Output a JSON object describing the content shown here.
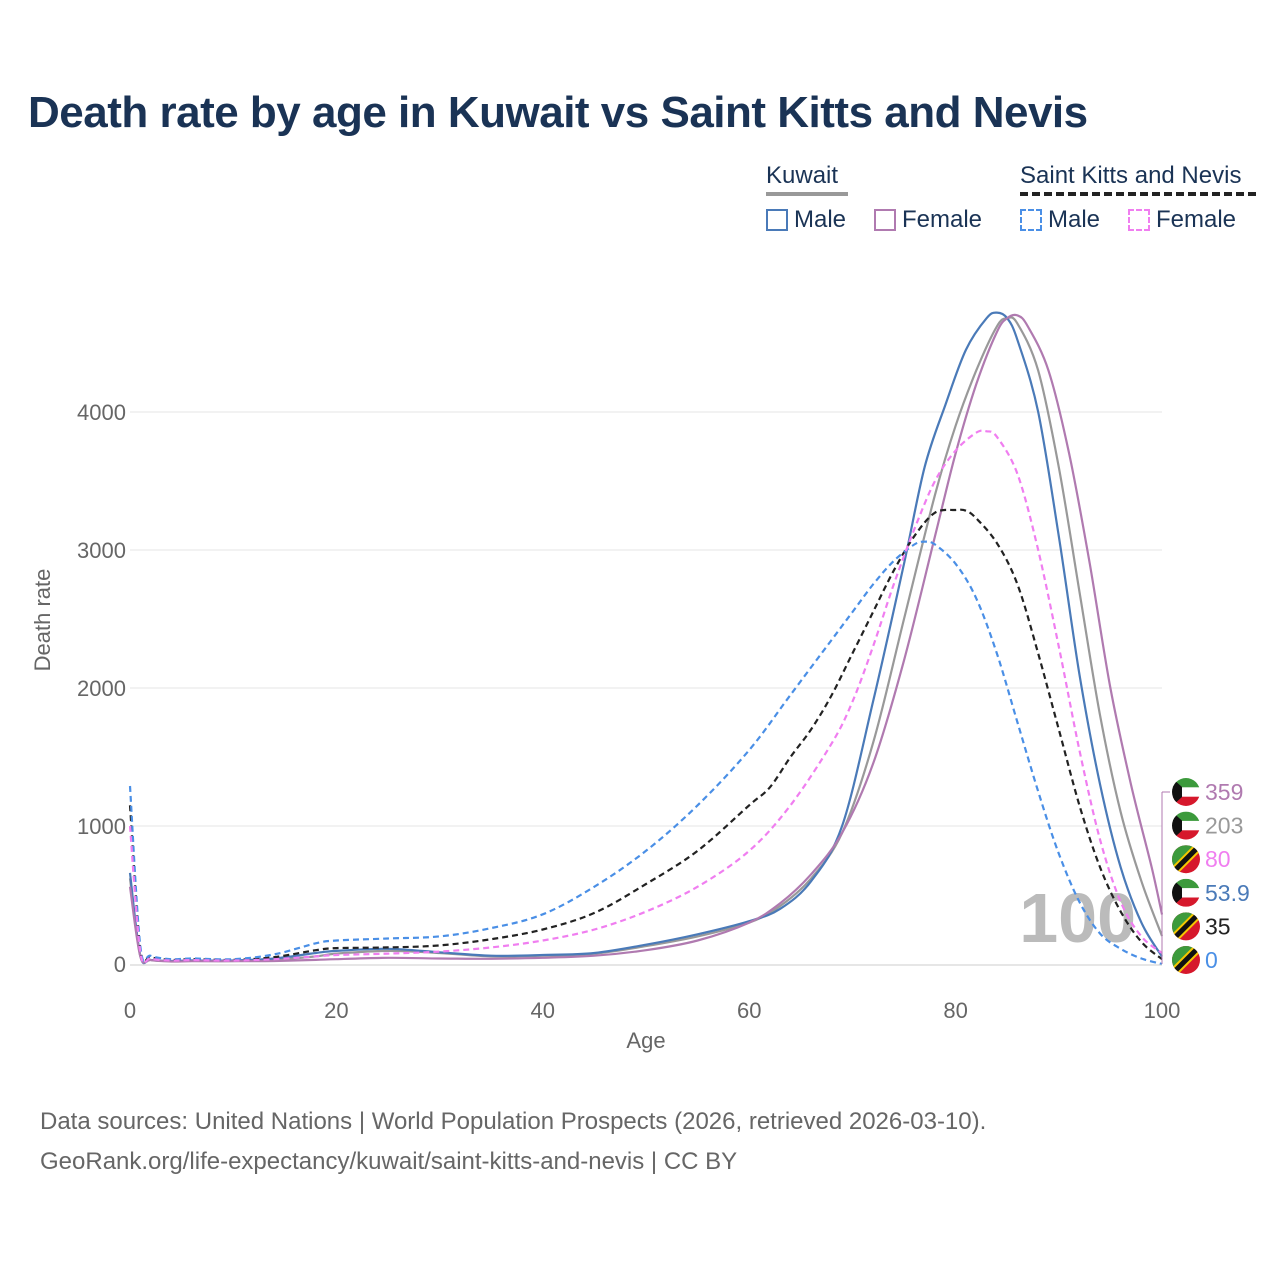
{
  "title": "Death rate by age in Kuwait vs Saint Kitts and Nevis",
  "legend": {
    "groups": [
      {
        "name": "Kuwait",
        "style": "solid",
        "color": "#999999",
        "items": [
          {
            "label": "Male",
            "color": "#4a7ab8"
          },
          {
            "label": "Female",
            "color": "#b07ab0"
          }
        ]
      },
      {
        "name": "Saint Kitts and Nevis",
        "style": "dashed",
        "color": "#222222",
        "items": [
          {
            "label": "Male",
            "color": "#4a8fe6"
          },
          {
            "label": "Female",
            "color": "#f07ef0"
          }
        ]
      }
    ]
  },
  "source_line1": "Data sources: United Nations | World Population Prospects (2026, retrieved 2026-03-10).",
  "source_line2": "GeoRank.org/life-expectancy/kuwait/saint-kitts-and-nevis | CC BY",
  "chart_data": {
    "type": "line",
    "xlabel": "Age",
    "ylabel": "Death rate",
    "xlim": [
      0,
      100
    ],
    "ylim": [
      0,
      4800
    ],
    "xticks": [
      0,
      20,
      40,
      60,
      80,
      100
    ],
    "yticks": [
      0,
      1000,
      2000,
      3000,
      4000
    ],
    "grid": true,
    "age_watermark": "100",
    "series": [
      {
        "name": "Kuwait Total",
        "color": "#999999",
        "dash": false,
        "end_label": "203",
        "flag": "kuwait",
        "points": [
          [
            0,
            620
          ],
          [
            1,
            60
          ],
          [
            2,
            30
          ],
          [
            4,
            20
          ],
          [
            6,
            25
          ],
          [
            10,
            22
          ],
          [
            14,
            30
          ],
          [
            18,
            55
          ],
          [
            20,
            75
          ],
          [
            25,
            95
          ],
          [
            30,
            80
          ],
          [
            35,
            55
          ],
          [
            40,
            60
          ],
          [
            45,
            75
          ],
          [
            50,
            130
          ],
          [
            55,
            200
          ],
          [
            60,
            300
          ],
          [
            63,
            420
          ],
          [
            66,
            620
          ],
          [
            69,
            950
          ],
          [
            72,
            1600
          ],
          [
            75,
            2500
          ],
          [
            78,
            3400
          ],
          [
            80,
            3900
          ],
          [
            82,
            4300
          ],
          [
            84,
            4620
          ],
          [
            85,
            4680
          ],
          [
            86,
            4640
          ],
          [
            88,
            4300
          ],
          [
            90,
            3600
          ],
          [
            92,
            2700
          ],
          [
            94,
            1800
          ],
          [
            96,
            1100
          ],
          [
            98,
            600
          ],
          [
            100,
            203
          ]
        ]
      },
      {
        "name": "Kuwait Male",
        "color": "#4a7ab8",
        "dash": false,
        "end_label": "53.9",
        "flag": "kuwait",
        "points": [
          [
            0,
            660
          ],
          [
            1,
            60
          ],
          [
            2,
            30
          ],
          [
            4,
            22
          ],
          [
            6,
            25
          ],
          [
            10,
            25
          ],
          [
            14,
            40
          ],
          [
            18,
            80
          ],
          [
            20,
            95
          ],
          [
            25,
            110
          ],
          [
            30,
            85
          ],
          [
            35,
            60
          ],
          [
            40,
            65
          ],
          [
            45,
            80
          ],
          [
            50,
            140
          ],
          [
            55,
            215
          ],
          [
            60,
            310
          ],
          [
            63,
            400
          ],
          [
            66,
            600
          ],
          [
            69,
            1000
          ],
          [
            72,
            1900
          ],
          [
            75,
            2900
          ],
          [
            77,
            3600
          ],
          [
            79,
            4050
          ],
          [
            81,
            4450
          ],
          [
            83,
            4680
          ],
          [
            84,
            4720
          ],
          [
            85,
            4680
          ],
          [
            86,
            4520
          ],
          [
            88,
            4000
          ],
          [
            90,
            3100
          ],
          [
            92,
            2100
          ],
          [
            94,
            1300
          ],
          [
            96,
            700
          ],
          [
            98,
            300
          ],
          [
            100,
            53.9
          ]
        ]
      },
      {
        "name": "Kuwait Female",
        "color": "#b07ab0",
        "dash": false,
        "end_label": "359",
        "flag": "kuwait",
        "points": [
          [
            0,
            560
          ],
          [
            1,
            55
          ],
          [
            2,
            28
          ],
          [
            4,
            18
          ],
          [
            6,
            20
          ],
          [
            10,
            20
          ],
          [
            14,
            22
          ],
          [
            18,
            30
          ],
          [
            20,
            35
          ],
          [
            25,
            45
          ],
          [
            30,
            40
          ],
          [
            35,
            38
          ],
          [
            40,
            45
          ],
          [
            45,
            60
          ],
          [
            50,
            100
          ],
          [
            55,
            170
          ],
          [
            60,
            300
          ],
          [
            63,
            440
          ],
          [
            66,
            650
          ],
          [
            69,
            950
          ],
          [
            72,
            1450
          ],
          [
            75,
            2200
          ],
          [
            78,
            3100
          ],
          [
            80,
            3700
          ],
          [
            82,
            4200
          ],
          [
            84,
            4580
          ],
          [
            85,
            4680
          ],
          [
            86,
            4700
          ],
          [
            87,
            4620
          ],
          [
            89,
            4300
          ],
          [
            91,
            3700
          ],
          [
            93,
            2900
          ],
          [
            95,
            2000
          ],
          [
            97,
            1300
          ],
          [
            99,
            700
          ],
          [
            100,
            359
          ]
        ]
      },
      {
        "name": "Saint Kitts and Nevis Total",
        "color": "#222222",
        "dash": true,
        "end_label": "35",
        "flag": "skn",
        "points": [
          [
            0,
            1150
          ],
          [
            1,
            110
          ],
          [
            2,
            50
          ],
          [
            4,
            30
          ],
          [
            6,
            35
          ],
          [
            10,
            30
          ],
          [
            14,
            50
          ],
          [
            18,
            100
          ],
          [
            20,
            115
          ],
          [
            25,
            120
          ],
          [
            30,
            135
          ],
          [
            35,
            180
          ],
          [
            40,
            250
          ],
          [
            45,
            370
          ],
          [
            50,
            580
          ],
          [
            55,
            820
          ],
          [
            60,
            1150
          ],
          [
            62,
            1280
          ],
          [
            64,
            1500
          ],
          [
            66,
            1700
          ],
          [
            68,
            1950
          ],
          [
            70,
            2250
          ],
          [
            72,
            2550
          ],
          [
            74,
            2850
          ],
          [
            76,
            3100
          ],
          [
            78,
            3270
          ],
          [
            80,
            3290
          ],
          [
            81,
            3285
          ],
          [
            82,
            3230
          ],
          [
            84,
            3050
          ],
          [
            86,
            2750
          ],
          [
            88,
            2250
          ],
          [
            90,
            1700
          ],
          [
            92,
            1150
          ],
          [
            94,
            700
          ],
          [
            96,
            380
          ],
          [
            98,
            160
          ],
          [
            100,
            35
          ]
        ]
      },
      {
        "name": "Saint Kitts and Nevis Male",
        "color": "#4a8fe6",
        "dash": true,
        "end_label": "0",
        "flag": "skn",
        "points": [
          [
            0,
            1290
          ],
          [
            1,
            130
          ],
          [
            2,
            60
          ],
          [
            4,
            35
          ],
          [
            6,
            40
          ],
          [
            10,
            35
          ],
          [
            14,
            70
          ],
          [
            18,
            150
          ],
          [
            20,
            170
          ],
          [
            25,
            185
          ],
          [
            30,
            200
          ],
          [
            35,
            260
          ],
          [
            40,
            360
          ],
          [
            45,
            560
          ],
          [
            50,
            820
          ],
          [
            55,
            1150
          ],
          [
            60,
            1550
          ],
          [
            64,
            1950
          ],
          [
            68,
            2350
          ],
          [
            70,
            2550
          ],
          [
            72,
            2750
          ],
          [
            74,
            2920
          ],
          [
            76,
            3040
          ],
          [
            77,
            3060
          ],
          [
            78,
            3040
          ],
          [
            80,
            2900
          ],
          [
            82,
            2650
          ],
          [
            84,
            2250
          ],
          [
            86,
            1750
          ],
          [
            88,
            1250
          ],
          [
            90,
            800
          ],
          [
            92,
            450
          ],
          [
            94,
            220
          ],
          [
            96,
            110
          ],
          [
            98,
            40
          ],
          [
            100,
            0
          ]
        ]
      },
      {
        "name": "Saint Kitts and Nevis Female",
        "color": "#f07ef0",
        "dash": true,
        "end_label": "80",
        "flag": "skn",
        "points": [
          [
            0,
            1000
          ],
          [
            1,
            90
          ],
          [
            2,
            40
          ],
          [
            4,
            25
          ],
          [
            6,
            28
          ],
          [
            10,
            25
          ],
          [
            14,
            35
          ],
          [
            18,
            55
          ],
          [
            20,
            65
          ],
          [
            25,
            75
          ],
          [
            30,
            90
          ],
          [
            35,
            120
          ],
          [
            40,
            170
          ],
          [
            45,
            250
          ],
          [
            50,
            380
          ],
          [
            55,
            560
          ],
          [
            60,
            820
          ],
          [
            64,
            1150
          ],
          [
            68,
            1600
          ],
          [
            70,
            1900
          ],
          [
            72,
            2300
          ],
          [
            74,
            2750
          ],
          [
            76,
            3150
          ],
          [
            78,
            3500
          ],
          [
            80,
            3720
          ],
          [
            82,
            3850
          ],
          [
            83,
            3860
          ],
          [
            84,
            3820
          ],
          [
            86,
            3550
          ],
          [
            88,
            3000
          ],
          [
            90,
            2300
          ],
          [
            92,
            1550
          ],
          [
            94,
            900
          ],
          [
            96,
            450
          ],
          [
            98,
            200
          ],
          [
            100,
            80
          ]
        ]
      }
    ]
  }
}
